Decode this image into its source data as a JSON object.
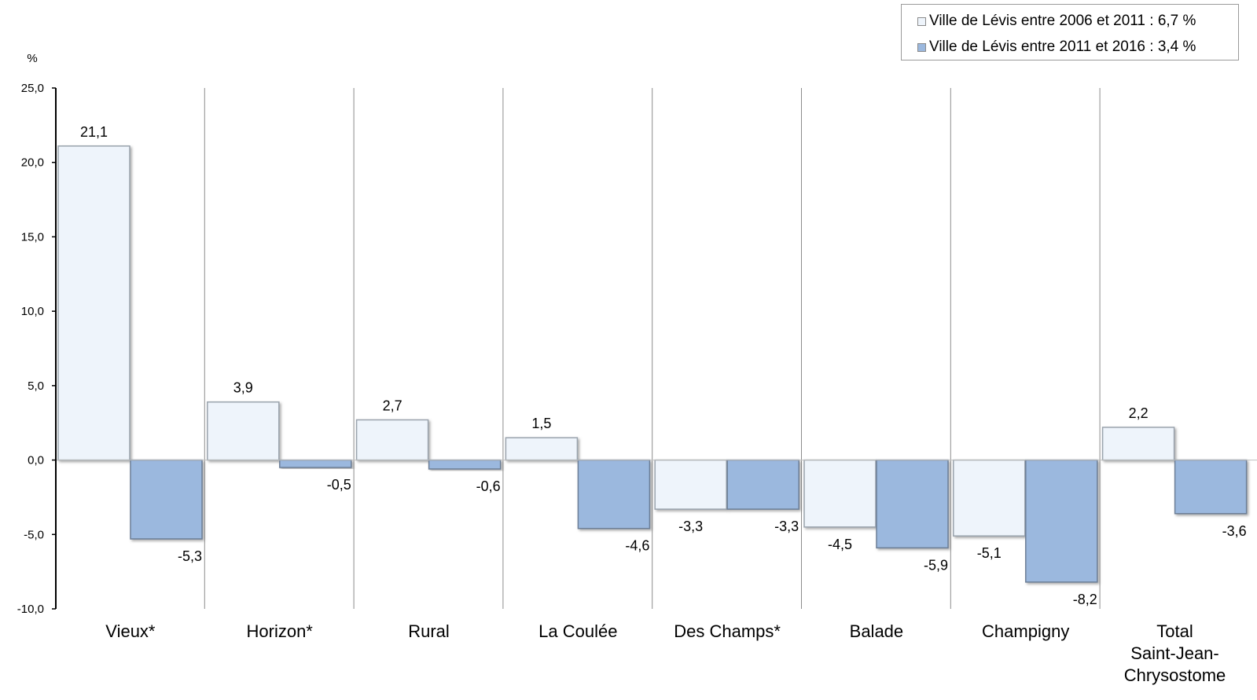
{
  "chart_data": {
    "type": "bar",
    "ylabel": "%",
    "ylim": [
      -10,
      25
    ],
    "yticks": [
      25,
      20,
      15,
      10,
      5,
      0,
      -5,
      -10
    ],
    "ytick_labels": [
      "25,0",
      "20,0",
      "15,0",
      "10,0",
      "5,0",
      "0,0",
      "-5,0",
      "-10,0"
    ],
    "categories": [
      "Vieux*",
      "Horizon*",
      "Rural",
      "La Coulée",
      "Des Champs*",
      "Balade",
      "Champigny",
      "Total Saint-Jean-Chrysostome"
    ],
    "category_lines": [
      [
        "Vieux*"
      ],
      [
        "Horizon*"
      ],
      [
        "Rural"
      ],
      [
        "La Coulée"
      ],
      [
        "Des Champs*"
      ],
      [
        "Balade"
      ],
      [
        "Champigny"
      ],
      [
        "Total",
        "Saint-Jean-",
        "Chrysostome"
      ]
    ],
    "series": [
      {
        "name": "Ville de Lévis entre 2006 et 2011 : 6,7 %",
        "color": "#eef4fb",
        "values": [
          21.1,
          3.9,
          2.7,
          1.5,
          -3.3,
          -4.5,
          -5.1,
          2.2
        ],
        "labels": [
          "21,1",
          "3,9",
          "2,7",
          "1,5",
          "-3,3",
          "-4,5",
          "-5,1",
          "2,2"
        ]
      },
      {
        "name": "Ville de Lévis entre 2011 et 2016 : 3,4 %",
        "color": "#9bb8de",
        "values": [
          -5.3,
          -0.5,
          -0.6,
          -4.6,
          -3.3,
          -5.9,
          -8.2,
          -3.6
        ],
        "labels": [
          "-5,3",
          "-0,5",
          "-0,6",
          "-4,6",
          "-3,3",
          "-5,9",
          "-8,2",
          "-3,6"
        ]
      }
    ],
    "grid": "vertical category separators",
    "legend": "top-right"
  }
}
